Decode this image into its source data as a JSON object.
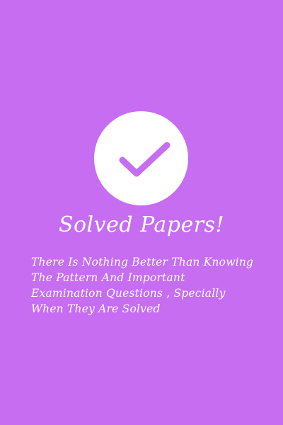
{
  "colors": {
    "background": "#c66df2",
    "circle": "#ffffff",
    "check": "#c66df2",
    "text": "#ffffff"
  },
  "icon": "checkmark-icon",
  "title": "Solved Papers!",
  "description": {
    "lines": [
      "There Is Nothing Better Than Knowing",
      "The Pattern And Important",
      "Examination Questions , Specially",
      "When They Are Solved"
    ]
  }
}
